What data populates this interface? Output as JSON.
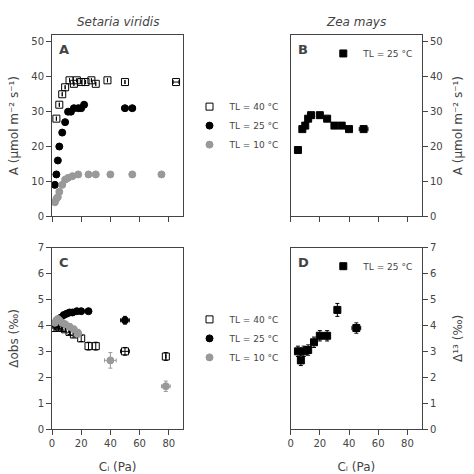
{
  "chart_data": [
    {
      "type": "scatter",
      "title": "Setaria viridis",
      "annotations": [
        "A"
      ],
      "ylabel": "A (μmol m⁻² s⁻¹)",
      "xlim": [
        0,
        90
      ],
      "xticks": [
        0,
        20,
        40,
        60,
        80
      ],
      "ylim": [
        0,
        52
      ],
      "yticks": [
        0,
        10,
        20,
        30,
        40,
        50
      ],
      "grid": false,
      "legend": "right",
      "tick_labels": "y",
      "series": [
        {
          "name": "TL = 40 °C",
          "color": "#000000",
          "marker": "square-open",
          "x": [
            3,
            5,
            7,
            9,
            12,
            15,
            17,
            20,
            23,
            27,
            30,
            38,
            50,
            85
          ],
          "values": [
            28,
            32,
            35,
            37,
            39,
            38,
            39,
            38.5,
            38.5,
            39,
            38,
            39,
            38.5,
            38.5
          ],
          "xerr": [
            0,
            0,
            0,
            0,
            0,
            0,
            0,
            0,
            0,
            0,
            0,
            0,
            0,
            2
          ]
        },
        {
          "name": "TL = 25 °C",
          "color": "#000000",
          "marker": "circle",
          "x": [
            2,
            3,
            4,
            5,
            7,
            9,
            11,
            13,
            15,
            18,
            20,
            22,
            50,
            55
          ],
          "values": [
            9,
            12,
            16,
            20,
            24,
            27,
            30,
            30,
            31,
            31,
            31,
            32,
            31,
            31
          ],
          "xerr": [
            0,
            0,
            0,
            0,
            0,
            0,
            0,
            0,
            0,
            0,
            0,
            0,
            2,
            2
          ]
        },
        {
          "name": "TL = 10 °C",
          "color": "#999999",
          "marker": "circle",
          "x": [
            2,
            3,
            4,
            5,
            7,
            9,
            11,
            14,
            18,
            25,
            30,
            40,
            55,
            75
          ],
          "values": [
            4,
            5,
            5.5,
            7,
            9,
            10.5,
            11,
            11.5,
            12,
            12,
            12,
            12,
            12,
            12
          ],
          "xerr": [
            0,
            0,
            0,
            0,
            0,
            0,
            0,
            0,
            0,
            0,
            1,
            1,
            1,
            2
          ]
        }
      ]
    },
    {
      "type": "scatter",
      "title": "Zea mays",
      "annotations": [
        "B"
      ],
      "ylabel": "A (μmol m⁻² s⁻¹)",
      "xlim": [
        0,
        90
      ],
      "xticks": [
        0,
        20,
        40,
        60,
        80
      ],
      "ylim": [
        0,
        52
      ],
      "yticks": [
        0,
        10,
        20,
        30,
        40,
        50
      ],
      "grid": false,
      "legend": "upper right",
      "tick_labels": "y",
      "series": [
        {
          "name": "TL = 25 °C",
          "color": "#000000",
          "marker": "square",
          "x": [
            5,
            8,
            10,
            12,
            14,
            20,
            25,
            30,
            35,
            40,
            50
          ],
          "values": [
            19,
            25,
            26,
            28,
            29,
            29,
            28,
            26,
            26,
            25,
            25
          ],
          "xerr": [
            0,
            0,
            0,
            0,
            0,
            0,
            0,
            0,
            0,
            0,
            3
          ]
        }
      ]
    },
    {
      "type": "scatter",
      "annotations": [
        "C"
      ],
      "xlabel": "Cᵢ (Pa)",
      "ylabel": "Δobs (‰)",
      "xlim": [
        0,
        90
      ],
      "xticks": [
        0,
        20,
        40,
        60,
        80
      ],
      "ylim": [
        0,
        7
      ],
      "yticks": [
        0,
        1,
        2,
        3,
        4,
        5,
        6,
        7
      ],
      "grid": false,
      "legend": "right",
      "series": [
        {
          "name": "TL = 40 °C",
          "color": "#000000",
          "marker": "square-open",
          "x": [
            2,
            3,
            4,
            5,
            7,
            9,
            12,
            15,
            20,
            25,
            30,
            50,
            78
          ],
          "values": [
            3.9,
            4.0,
            4.0,
            3.95,
            3.9,
            3.85,
            3.75,
            3.65,
            3.5,
            3.2,
            3.2,
            3.0,
            2.8
          ],
          "yerr": [
            0.08,
            0.08,
            0.08,
            0.08,
            0.08,
            0.08,
            0.1,
            0.1,
            0.12,
            0.15,
            0.15,
            0.15,
            0.15
          ],
          "xerr": [
            null,
            null,
            null,
            null,
            null,
            null,
            null,
            null,
            null,
            null,
            null,
            3,
            0
          ]
        },
        {
          "name": "TL = 25 °C",
          "color": "#000000",
          "marker": "circle",
          "x": [
            2,
            3,
            4,
            5,
            6,
            8,
            10,
            12,
            14,
            17,
            20,
            25,
            50
          ],
          "values": [
            4.05,
            4.1,
            4.15,
            4.2,
            4.3,
            4.4,
            4.45,
            4.5,
            4.5,
            4.55,
            4.55,
            4.55,
            4.2
          ],
          "yerr": [
            0.05,
            0.05,
            0.05,
            0.05,
            0.05,
            0.05,
            0.05,
            0.06,
            0.06,
            0.06,
            0.06,
            0.06,
            0.15
          ],
          "xerr": [
            0,
            0,
            0,
            0,
            0,
            0,
            0,
            0,
            0,
            0,
            0,
            0,
            3
          ]
        },
        {
          "name": "TL = 10 °C",
          "color": "#999999",
          "marker": "circle",
          "x": [
            2,
            3,
            4,
            5,
            7,
            9,
            12,
            15,
            18,
            40,
            78
          ],
          "values": [
            4.1,
            4.2,
            4.25,
            4.2,
            4.1,
            4.05,
            3.95,
            3.85,
            3.7,
            2.65,
            1.65
          ],
          "yerr": [
            0.08,
            0.08,
            0.1,
            0.1,
            0.1,
            0.1,
            0.12,
            0.12,
            0.15,
            0.3,
            0.2
          ],
          "xerr": [
            0,
            0,
            0,
            0,
            0,
            0,
            0,
            0,
            0,
            4,
            3
          ]
        }
      ]
    },
    {
      "type": "scatter",
      "annotations": [
        "D"
      ],
      "xlabel": "Cᵢ (Pa)",
      "ylabel": "Δ¹³ (‰)",
      "xlim": [
        0,
        90
      ],
      "xticks": [
        0,
        20,
        40,
        60,
        80
      ],
      "ylim": [
        0,
        7
      ],
      "yticks": [
        0,
        1,
        2,
        3,
        4,
        5,
        6,
        7
      ],
      "grid": false,
      "legend": "upper right",
      "series": [
        {
          "name": "TL = 25 °C",
          "color": "#000000",
          "marker": "square",
          "x": [
            5,
            7,
            9,
            12,
            16,
            20,
            25,
            32,
            45
          ],
          "values": [
            3.0,
            2.65,
            3.0,
            3.05,
            3.35,
            3.6,
            3.6,
            4.6,
            3.9
          ],
          "yerr": [
            0.2,
            0.2,
            0.2,
            0.2,
            0.2,
            0.2,
            0.2,
            0.25,
            0.2
          ],
          "xerr": [
            0,
            0,
            0,
            0,
            0,
            0,
            0,
            0,
            3
          ]
        }
      ]
    }
  ]
}
